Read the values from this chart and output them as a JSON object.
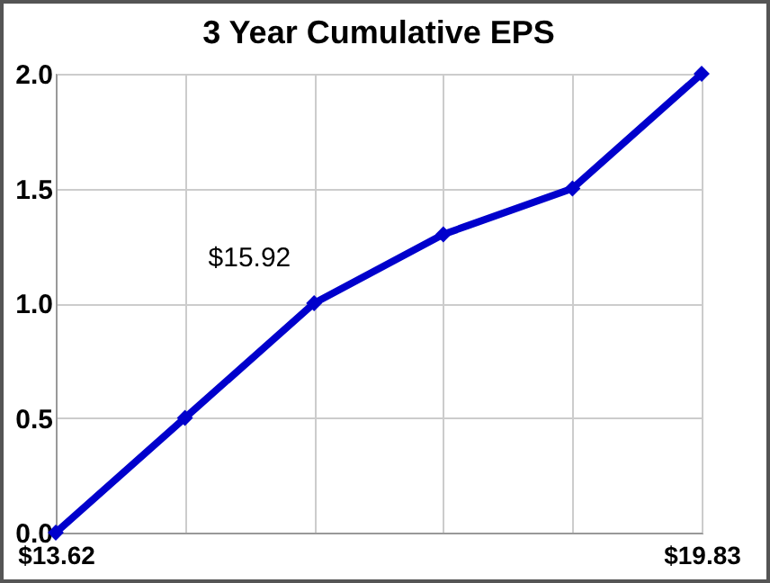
{
  "chart_data": {
    "type": "line",
    "title": "3 Year Cumulative EPS",
    "categories": [
      "$13.62",
      null,
      null,
      null,
      null,
      "$19.83"
    ],
    "series": [
      {
        "color": "#0000cc",
        "values": [
          0,
          0.5,
          1.0,
          1.3,
          1.5,
          2.0
        ]
      }
    ],
    "ylim": [
      0,
      2.0
    ],
    "yticks": [
      {
        "value": 0,
        "label": "0.0"
      },
      {
        "value": 0.5,
        "label": "0.5"
      },
      {
        "value": 1.0,
        "label": "1.0"
      },
      {
        "value": 1.5,
        "label": "1.5"
      },
      {
        "value": 2.0,
        "label": "2.0"
      }
    ],
    "annotations": [
      "$15.92"
    ],
    "grid": true,
    "marker": "diamond",
    "line_style": "solid"
  }
}
